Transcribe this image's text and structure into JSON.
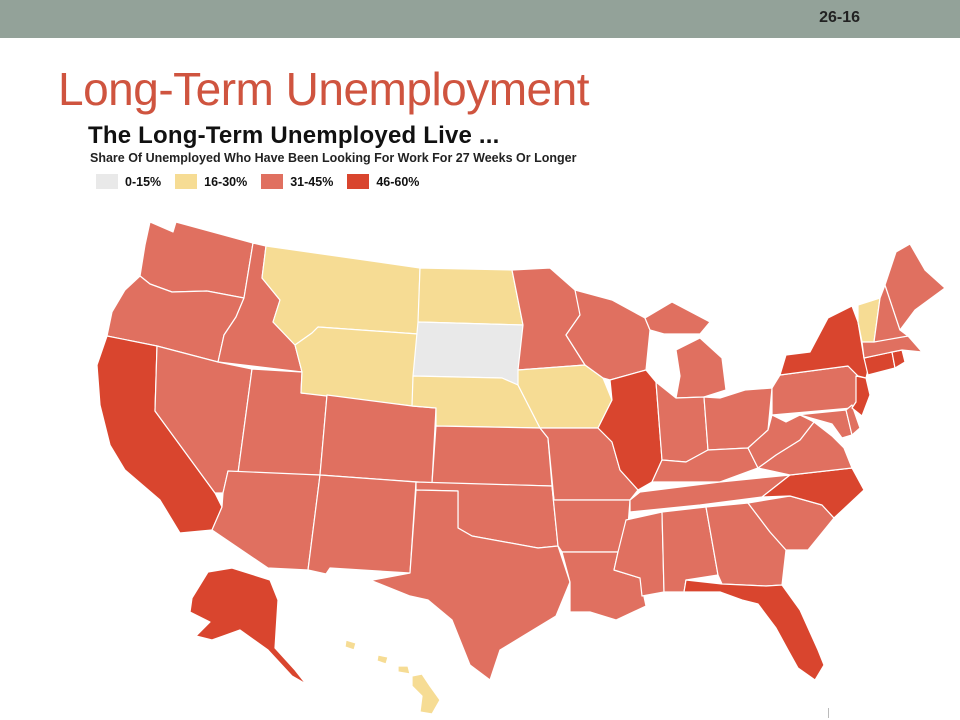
{
  "slide": {
    "number": "26-16",
    "title": "Long-Term Unemployment"
  },
  "map": {
    "title": "The Long-Term Unemployed Live ...",
    "subtitle": "Share Of Unemployed Who Have Been Looking For Work For 27 Weeks Or Longer",
    "legend": [
      {
        "label": "0-15%",
        "color": "#e9e9e9"
      },
      {
        "label": "16-30%",
        "color": "#f6dc94"
      },
      {
        "label": "31-45%",
        "color": "#e07060"
      },
      {
        "label": "46-60%",
        "color": "#d9452e"
      }
    ]
  },
  "colors": {
    "topbar": "#93a299",
    "slide_title": "#cf543f"
  },
  "map_data": {
    "type": "choropleth",
    "measure": "share of unemployed looking for work 27 weeks or longer",
    "states": {
      "0-15%": [
        "SD"
      ],
      "16-30%": [
        "MT",
        "WY",
        "ND",
        "NE",
        "IA",
        "VT",
        "HI"
      ],
      "31-45%": [
        "WA",
        "OR",
        "ID",
        "NV",
        "UT",
        "AZ",
        "CO",
        "NM",
        "TX",
        "OK",
        "KS",
        "MN",
        "WI",
        "MI",
        "MO",
        "AR",
        "LA",
        "MS",
        "AL",
        "GA",
        "SC",
        "TN",
        "KY",
        "IN",
        "OH",
        "WV",
        "VA",
        "PA",
        "MD",
        "DE",
        "ME",
        "NH",
        "MA"
      ],
      "46-60%": [
        "CA",
        "IL",
        "NY",
        "NJ",
        "CT",
        "RI",
        "NC",
        "FL",
        "AK"
      ]
    }
  }
}
